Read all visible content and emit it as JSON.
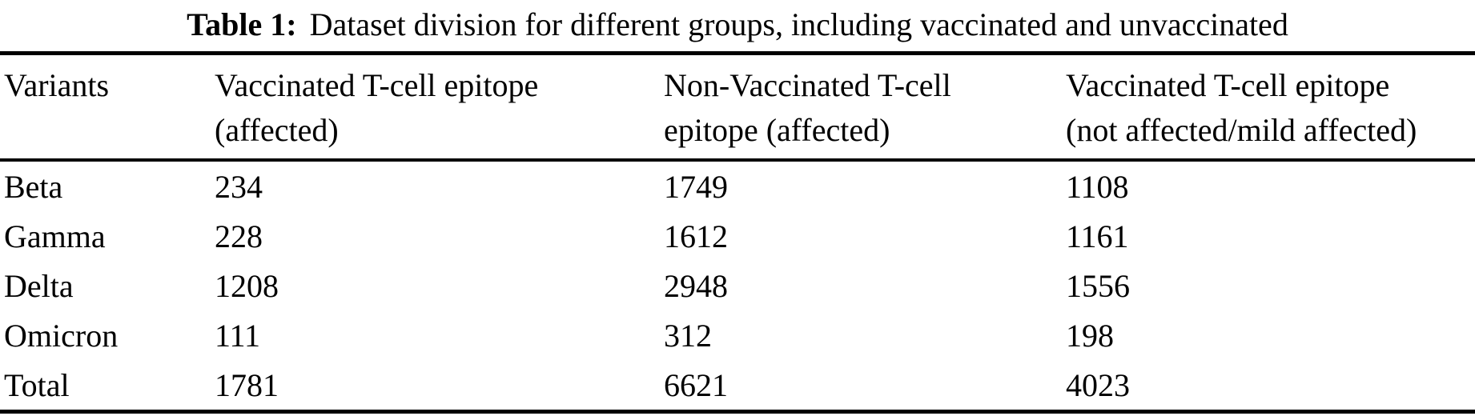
{
  "caption": {
    "label": "Table 1:",
    "text": "Dataset division for different groups, including vaccinated and unvaccinated"
  },
  "table": {
    "columns": [
      {
        "line1": "Variants",
        "line2": ""
      },
      {
        "line1": "Vaccinated T-cell epitope",
        "line2": "(affected)"
      },
      {
        "line1": "Non-Vaccinated T-cell",
        "line2": "epitope (affected)"
      },
      {
        "line1": "Vaccinated T-cell epitope",
        "line2": "(not affected/mild affected)"
      }
    ],
    "rows": [
      {
        "variant": "Beta",
        "vaccinated_affected": "234",
        "non_vaccinated_affected": "1749",
        "vaccinated_not_affected": "1108"
      },
      {
        "variant": "Gamma",
        "vaccinated_affected": "228",
        "non_vaccinated_affected": "1612",
        "vaccinated_not_affected": "1161"
      },
      {
        "variant": "Delta",
        "vaccinated_affected": "1208",
        "non_vaccinated_affected": "2948",
        "vaccinated_not_affected": "1556"
      },
      {
        "variant": "Omicron",
        "vaccinated_affected": "111",
        "non_vaccinated_affected": "312",
        "vaccinated_not_affected": "198"
      },
      {
        "variant": "Total",
        "vaccinated_affected": "1781",
        "non_vaccinated_affected": "6621",
        "vaccinated_not_affected": "4023"
      }
    ]
  },
  "chart_data": {
    "type": "table",
    "title": "Table 1: Dataset division for different groups, including vaccinated and unvaccinated",
    "columns": [
      "Variants",
      "Vaccinated T-cell epitope (affected)",
      "Non-Vaccinated T-cell epitope (affected)",
      "Vaccinated T-cell epitope (not affected/mild affected)"
    ],
    "rows": [
      [
        "Beta",
        234,
        1749,
        1108
      ],
      [
        "Gamma",
        228,
        1612,
        1161
      ],
      [
        "Delta",
        1208,
        2948,
        1556
      ],
      [
        "Omicron",
        111,
        312,
        198
      ],
      [
        "Total",
        1781,
        6621,
        4023
      ]
    ],
    "colors": {
      "text": "#000000",
      "background": "#ffffff",
      "rule": "#000000"
    }
  }
}
